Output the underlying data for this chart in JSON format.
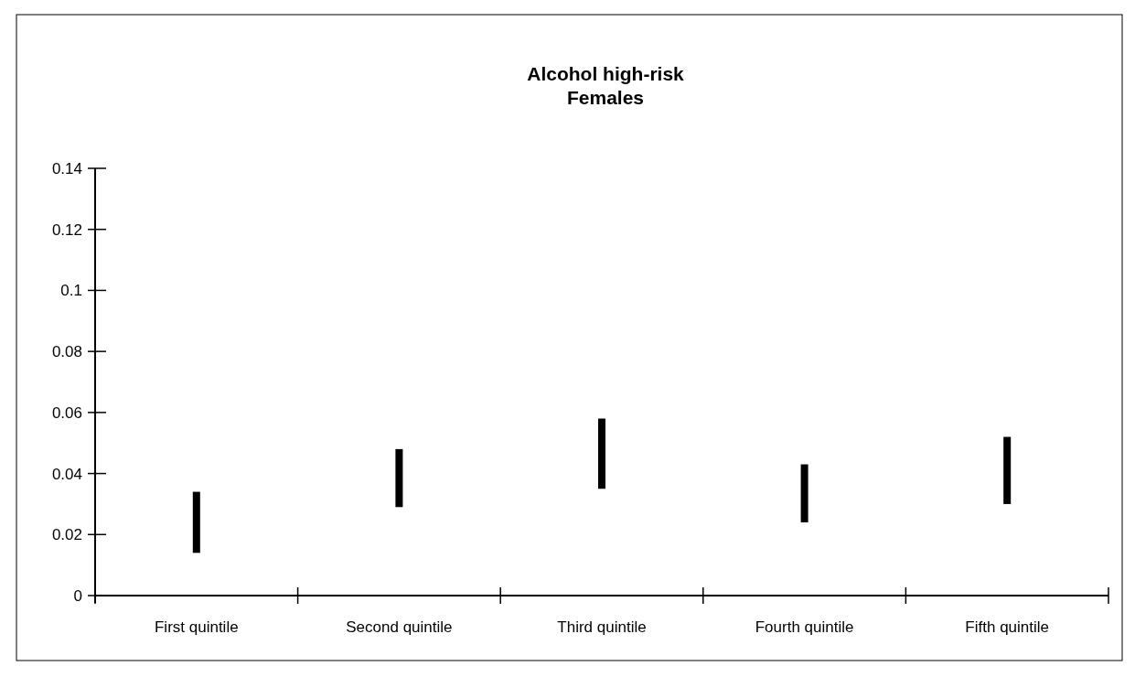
{
  "chart_data": {
    "type": "bar",
    "title": "Alcohol high-risk\nFemales",
    "categories": [
      "First quintile",
      "Second quintile",
      "Third quintile",
      "Fourth quintile",
      "Fifth quintile"
    ],
    "base": [
      0.014,
      0.029,
      0.035,
      0.024,
      0.03
    ],
    "values": [
      0.02,
      0.019,
      0.023,
      0.019,
      0.022
    ],
    "color": "#000000",
    "ylim": [
      0,
      0.14
    ],
    "yticks": [
      0,
      0.02,
      0.04,
      0.06,
      0.08,
      0.1,
      0.12,
      0.14
    ]
  }
}
